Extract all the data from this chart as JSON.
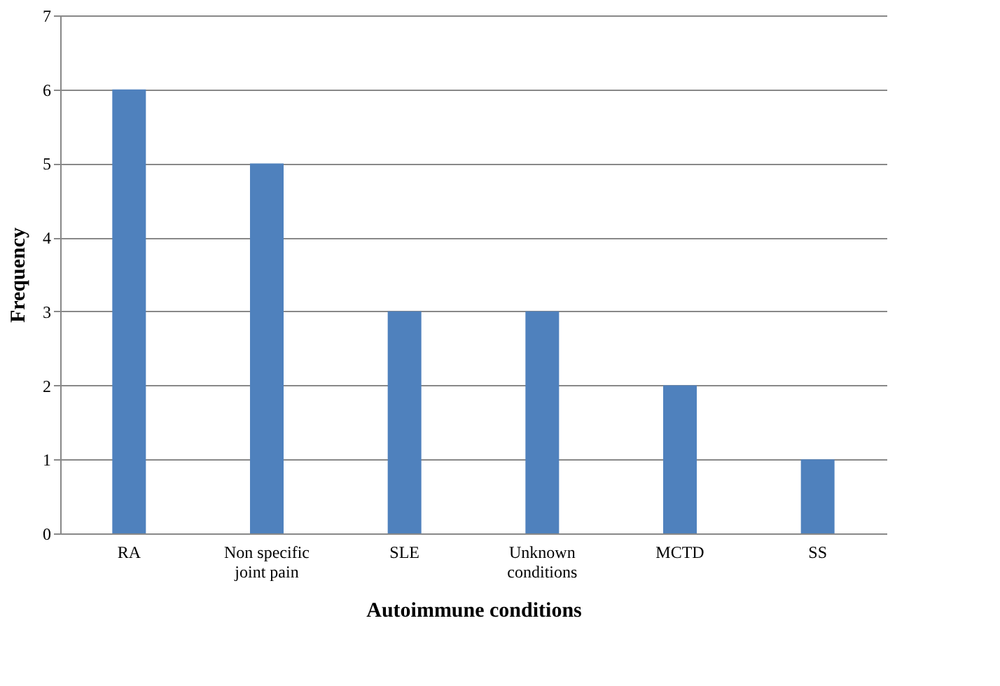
{
  "chart_data": {
    "type": "bar",
    "categories": [
      "RA",
      "Non specific joint pain",
      "SLE",
      "Unknown conditions",
      "MCTD",
      "SS"
    ],
    "values": [
      6,
      5,
      3,
      3,
      2,
      1
    ],
    "color": "#4f81bd",
    "xlabel": "Autoimmune conditions",
    "ylabel": "Frequency",
    "ylim": [
      0,
      7
    ],
    "yticks": [
      0,
      1,
      2,
      3,
      4,
      5,
      6,
      7
    ],
    "grid": "y"
  }
}
